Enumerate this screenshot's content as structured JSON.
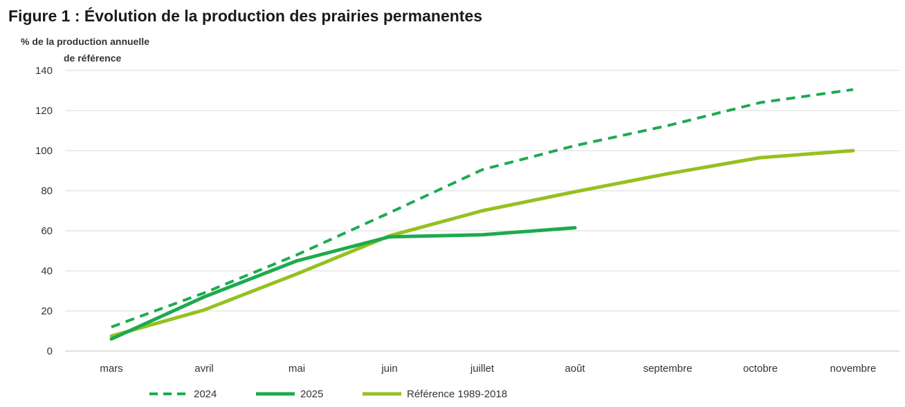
{
  "chart_data": {
    "type": "line",
    "title": "Figure 1 : Évolution de la production des prairies permanentes",
    "ylabel_line1": "% de  la production  annuelle",
    "ylabel_line2": "de référence",
    "xlabel": "",
    "categories": [
      "mars",
      "avril",
      "mai",
      "juin",
      "juillet",
      "août",
      "septembre",
      "octobre",
      "novembre"
    ],
    "ylim": [
      0,
      140
    ],
    "yticks": [
      0,
      20,
      40,
      60,
      80,
      100,
      120,
      140
    ],
    "grid": true,
    "legend_position": "bottom",
    "series": [
      {
        "name": "2024",
        "color": "#1daa4f",
        "style": "dashed",
        "values": [
          12,
          29,
          48,
          69,
          90.5,
          102.5,
          112.5,
          124,
          130.5
        ]
      },
      {
        "name": "2025",
        "color": "#1daa4f",
        "style": "solid",
        "values": [
          6,
          27,
          45,
          57,
          58,
          61.5,
          null,
          null,
          null
        ]
      },
      {
        "name": "Référence 1989-2018",
        "color": "#95c11f",
        "style": "solid",
        "values": [
          7.5,
          20.5,
          38.5,
          57.5,
          70,
          79.5,
          88.5,
          96.5,
          100
        ]
      }
    ]
  }
}
